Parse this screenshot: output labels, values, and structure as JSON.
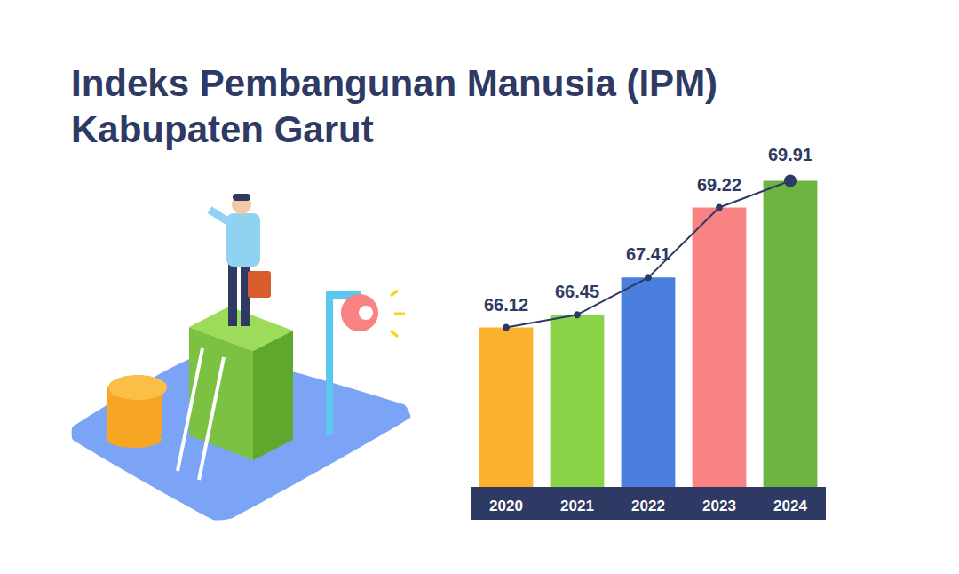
{
  "chart_data": {
    "type": "bar",
    "title": "Indeks Pembangunan Manusia (IPM) Kabupaten Garut",
    "categories": [
      "2020",
      "2021",
      "2022",
      "2023",
      "2024"
    ],
    "series": [
      {
        "type": "bar",
        "values": [
          66.12,
          66.45,
          67.41,
          69.22,
          69.91
        ],
        "colors": [
          "#fbb32f",
          "#8bd44a",
          "#4a7fe0",
          "#f98383",
          "#6db33f"
        ]
      },
      {
        "type": "line",
        "values": [
          66.12,
          66.45,
          67.41,
          69.22,
          69.91
        ],
        "color": "#2e3a63",
        "marker": "circle",
        "line_style": "solid"
      }
    ],
    "ylim": [
      62,
      71
    ],
    "yticks": [
      62,
      71
    ],
    "grid": false,
    "tick_labels": "x",
    "data_labels": true
  }
}
